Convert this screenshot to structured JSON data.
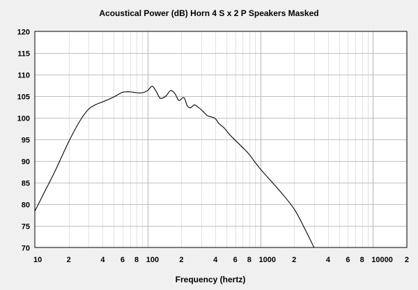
{
  "chart_data": {
    "type": "line",
    "title": "Acoustical Power (dB)   Horn   4 S x 2 P Speakers   Masked",
    "xlabel": "Frequency (hertz)",
    "ylabel": "",
    "xscale": "log",
    "xlim": [
      10,
      20000
    ],
    "ylim": [
      70,
      120
    ],
    "grid": true,
    "yticks": [
      "70",
      "75",
      "80",
      "85",
      "90",
      "95",
      "100",
      "105",
      "110",
      "115",
      "120"
    ],
    "xticks": [
      {
        "v": 10,
        "label": "10"
      },
      {
        "v": 20,
        "label": "2"
      },
      {
        "v": 40,
        "label": "4"
      },
      {
        "v": 60,
        "label": "6"
      },
      {
        "v": 80,
        "label": "8"
      },
      {
        "v": 100,
        "label": "100"
      },
      {
        "v": 200,
        "label": "2"
      },
      {
        "v": 400,
        "label": "4"
      },
      {
        "v": 600,
        "label": "6"
      },
      {
        "v": 800,
        "label": "8"
      },
      {
        "v": 1000,
        "label": "1000"
      },
      {
        "v": 2000,
        "label": "2"
      },
      {
        "v": 4000,
        "label": "4"
      },
      {
        "v": 6000,
        "label": "6"
      },
      {
        "v": 8000,
        "label": "8"
      },
      {
        "v": 10000,
        "label": "10000"
      },
      {
        "v": 20000,
        "label": "2"
      }
    ],
    "series": [
      {
        "name": "Acoustical Power",
        "color": "#000000",
        "x": [
          10,
          12,
          15,
          20,
          25,
          30,
          35,
          40,
          50,
          60,
          70,
          80,
          90,
          100,
          110,
          120,
          130,
          145,
          160,
          175,
          190,
          210,
          225,
          240,
          260,
          280,
          310,
          340,
          370,
          400,
          430,
          480,
          540,
          600,
          700,
          800,
          1000,
          1500,
          2000,
          2500,
          3000
        ],
        "y": [
          78.4,
          82.5,
          87.5,
          94.5,
          99.2,
          102.0,
          103.1,
          103.7,
          104.8,
          105.9,
          106.0,
          105.8,
          105.8,
          106.3,
          107.3,
          106.0,
          104.5,
          105.0,
          106.3,
          105.6,
          104.0,
          104.7,
          102.8,
          102.3,
          103.0,
          102.5,
          101.5,
          100.5,
          100.2,
          99.8,
          98.7,
          97.6,
          96.0,
          94.8,
          93.1,
          91.5,
          88.2,
          83.0,
          78.9,
          74.2,
          70.0
        ]
      }
    ]
  }
}
